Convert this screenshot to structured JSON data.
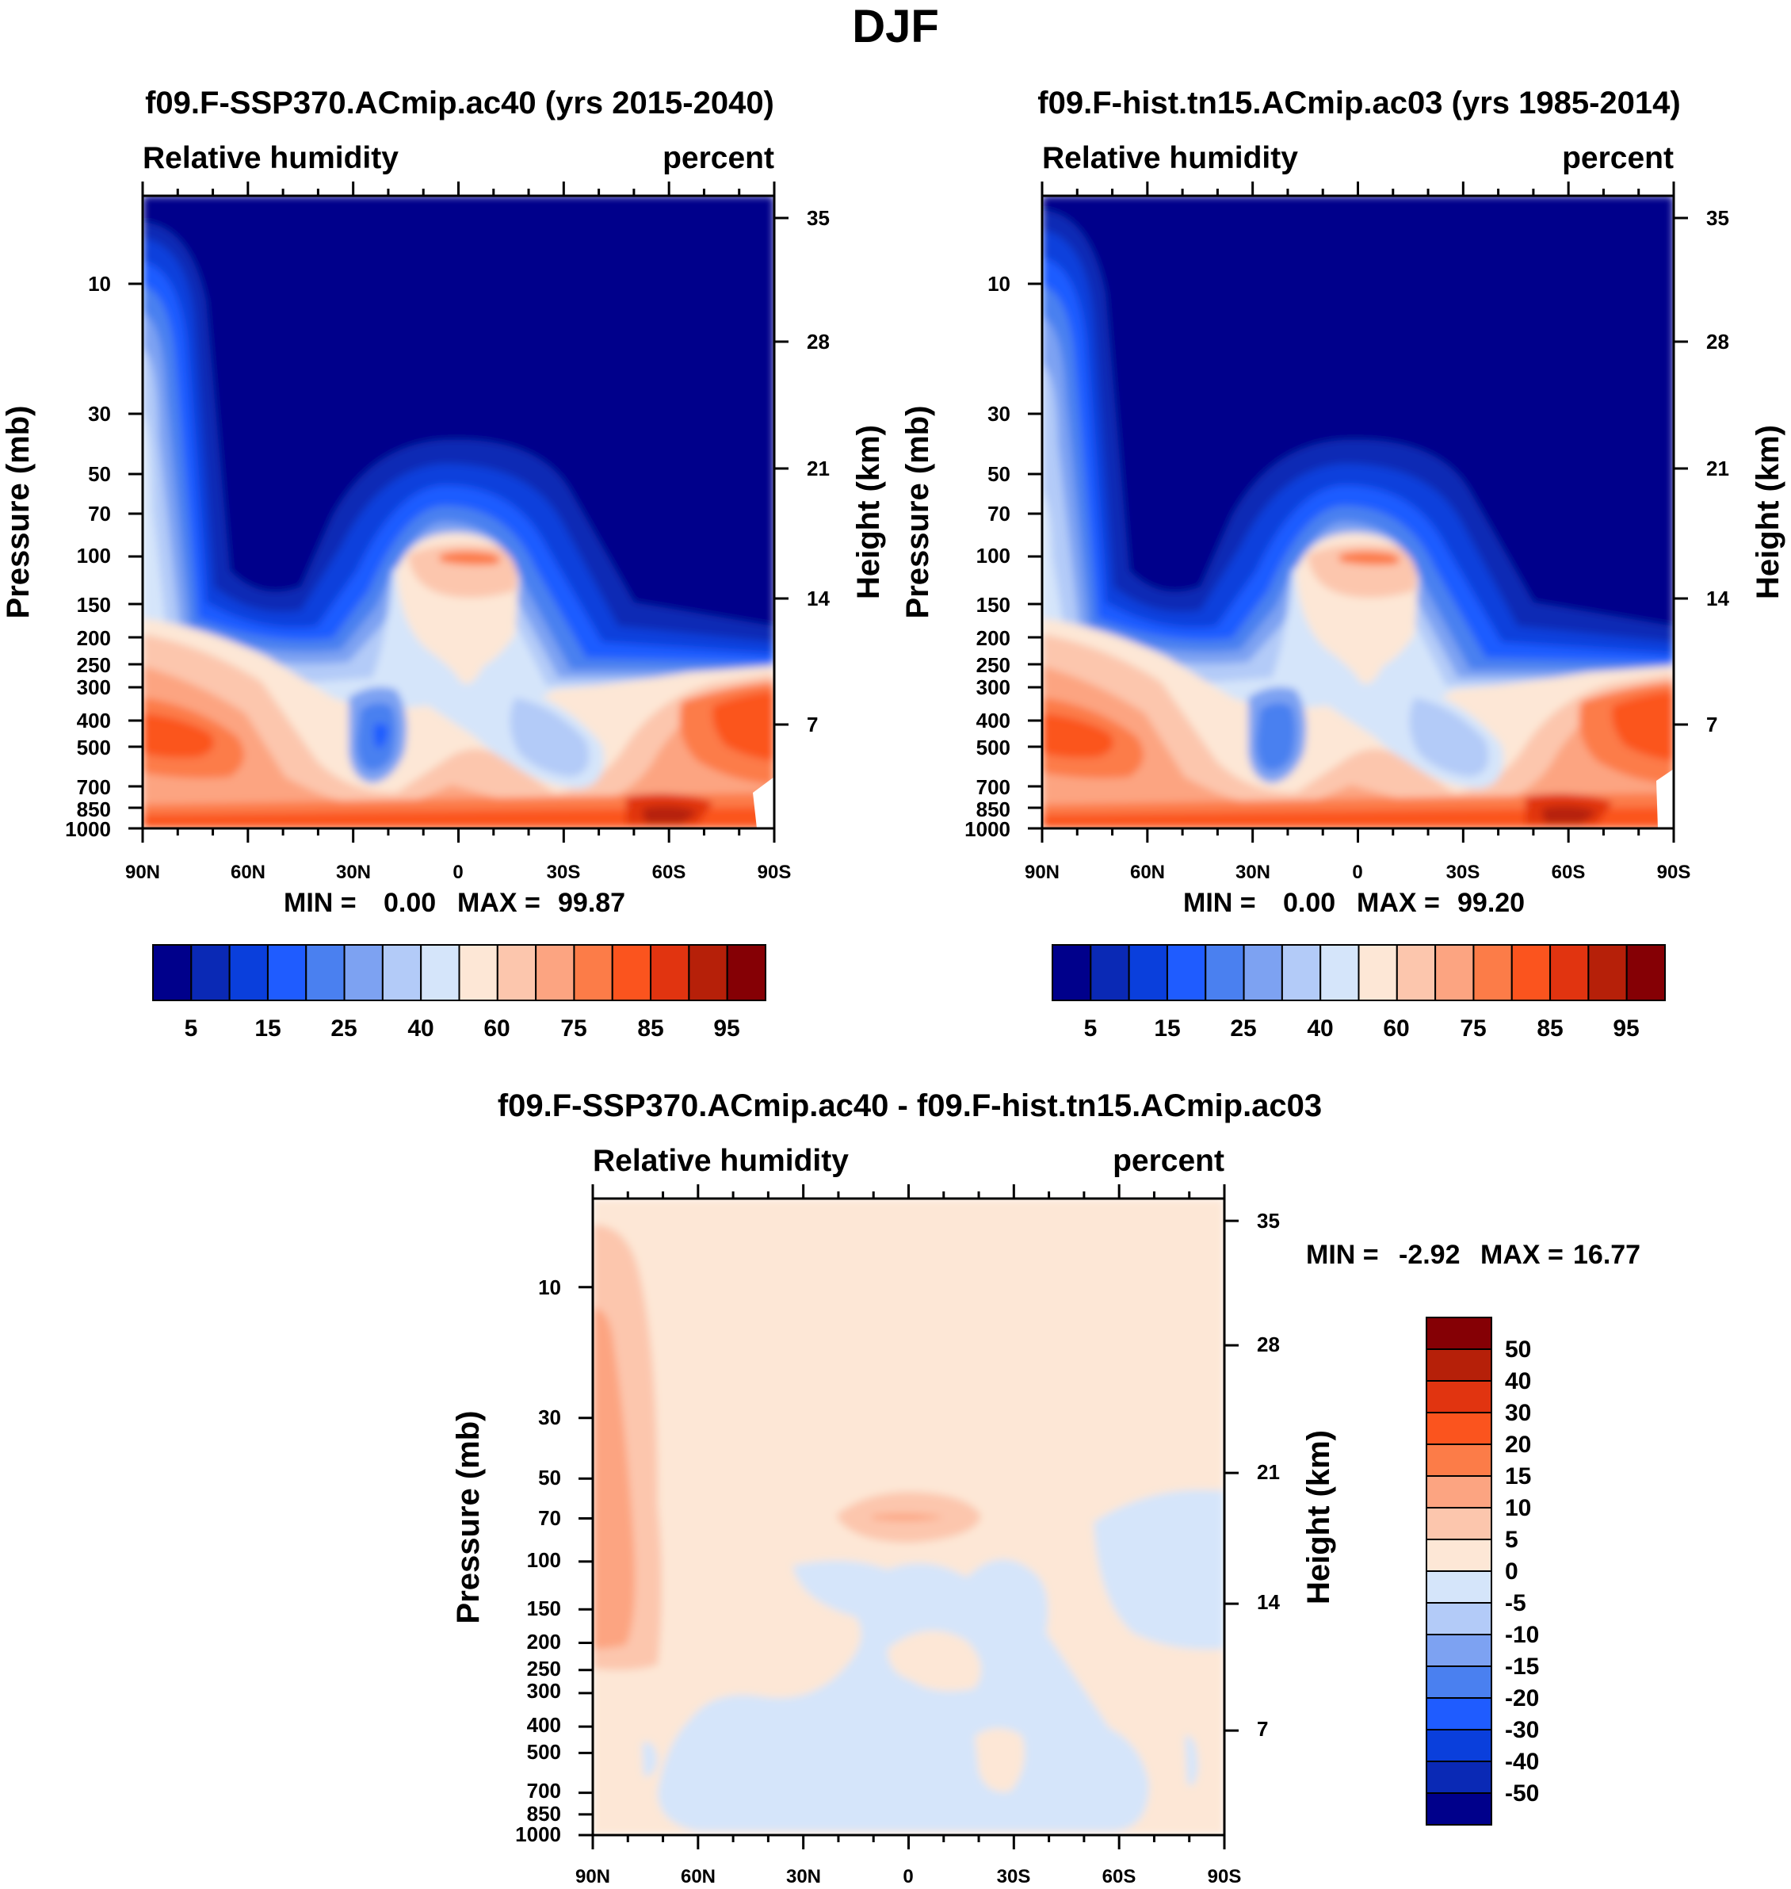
{
  "figure_title": "DJF",
  "colors": {
    "seq": [
      "#00008b",
      "#0a29b5",
      "#0a3fdc",
      "#1f5cff",
      "#4a80f0",
      "#7da2f2",
      "#b3cbf8",
      "#d5e5fa",
      "#fde7d6",
      "#fcc6ad",
      "#fca481",
      "#fc7c48",
      "#fb541e",
      "#e13410",
      "#b62009",
      "#850005"
    ],
    "diff": [
      "#00008b",
      "#0a29b5",
      "#0a3fdc",
      "#1f5cff",
      "#4a80f0",
      "#7da2f2",
      "#b3cbf8",
      "#d5e5fa",
      "#fde7d6",
      "#fcc6ad",
      "#fca481",
      "#fc7c48",
      "#fb541e",
      "#e13410",
      "#b62009",
      "#850005"
    ]
  },
  "chart_data": [
    {
      "type": "heatmap",
      "title": "f09.F-SSP370.ACmip.ac40 (yrs 2015-2040)",
      "left_string": "Relative humidity",
      "right_string": "percent",
      "ylabel": "Pressure (mb)",
      "ylabel_right": "Height (km)",
      "x_ticks": [
        "90N",
        "60N",
        "30N",
        "0",
        "30S",
        "60S",
        "90S"
      ],
      "y_ticks": [
        "10",
        "30",
        "50",
        "70",
        "100",
        "150",
        "200",
        "250",
        "300",
        "400",
        "500",
        "700",
        "850",
        "1000"
      ],
      "y_right_ticks": [
        "35",
        "28",
        "21",
        "14",
        "7"
      ],
      "min_label": "MIN =",
      "min_value": "0.00",
      "max_label": "MAX =",
      "max_value": "99.87",
      "colorbar_labels": [
        "5",
        "15",
        "25",
        "40",
        "60",
        "75",
        "85",
        "95"
      ]
    },
    {
      "type": "heatmap",
      "title": "f09.F-hist.tn15.ACmip.ac03 (yrs 1985-2014)",
      "left_string": "Relative humidity",
      "right_string": "percent",
      "ylabel": "Pressure (mb)",
      "ylabel_right": "Height (km)",
      "x_ticks": [
        "90N",
        "60N",
        "30N",
        "0",
        "30S",
        "60S",
        "90S"
      ],
      "y_ticks": [
        "10",
        "30",
        "50",
        "70",
        "100",
        "150",
        "200",
        "250",
        "300",
        "400",
        "500",
        "700",
        "850",
        "1000"
      ],
      "y_right_ticks": [
        "35",
        "28",
        "21",
        "14",
        "7"
      ],
      "min_label": "MIN =",
      "min_value": "0.00",
      "max_label": "MAX =",
      "max_value": "99.20",
      "colorbar_labels": [
        "5",
        "15",
        "25",
        "40",
        "60",
        "75",
        "85",
        "95"
      ]
    },
    {
      "type": "heatmap",
      "title": "f09.F-SSP370.ACmip.ac40 - f09.F-hist.tn15.ACmip.ac03",
      "left_string": "Relative humidity",
      "right_string": "percent",
      "ylabel": "Pressure (mb)",
      "ylabel_right": "Height (km)",
      "x_ticks": [
        "90N",
        "60N",
        "30N",
        "0",
        "30S",
        "60S",
        "90S"
      ],
      "y_ticks": [
        "10",
        "30",
        "50",
        "70",
        "100",
        "150",
        "200",
        "250",
        "300",
        "400",
        "500",
        "700",
        "850",
        "1000"
      ],
      "y_right_ticks": [
        "35",
        "28",
        "21",
        "14",
        "7"
      ],
      "min_label": "MIN =",
      "min_value": "-2.92",
      "max_label": "MAX =",
      "max_value": "16.77",
      "colorbar_labels": [
        "50",
        "40",
        "30",
        "20",
        "15",
        "10",
        "5",
        "0",
        "-5",
        "-10",
        "-15",
        "-20",
        "-30",
        "-40",
        "-50"
      ]
    }
  ]
}
